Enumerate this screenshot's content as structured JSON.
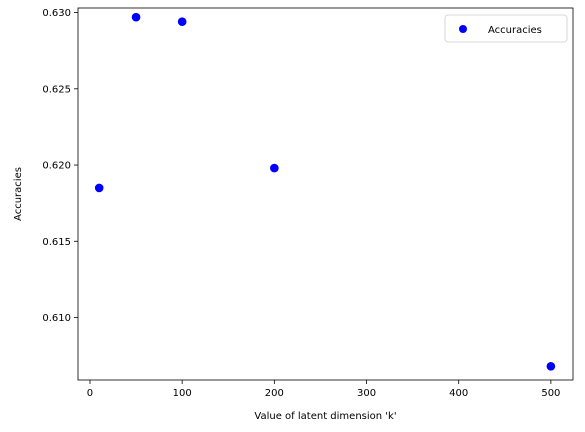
{
  "chart_data": {
    "type": "scatter",
    "title": "",
    "xlabel": "Value of latent dimension 'k'",
    "ylabel": "Accuracies",
    "xlim": [
      -13,
      524
    ],
    "ylim": [
      0.6059,
      0.6303
    ],
    "xticks": [
      0,
      100,
      200,
      300,
      400,
      500
    ],
    "yticks": [
      0.61,
      0.615,
      0.62,
      0.625,
      0.63
    ],
    "xtick_labels": [
      "0",
      "100",
      "200",
      "300",
      "400",
      "500"
    ],
    "ytick_labels": [
      "0.610",
      "0.615",
      "0.620",
      "0.625",
      "0.630"
    ],
    "grid": false,
    "legend_position": "top-right",
    "series": [
      {
        "name": "Accuracies",
        "color": "#0000ff",
        "marker": "circle",
        "x": [
          10,
          50,
          100,
          200,
          500
        ],
        "y": [
          0.6185,
          0.6297,
          0.6294,
          0.6198,
          0.6068
        ]
      }
    ]
  }
}
